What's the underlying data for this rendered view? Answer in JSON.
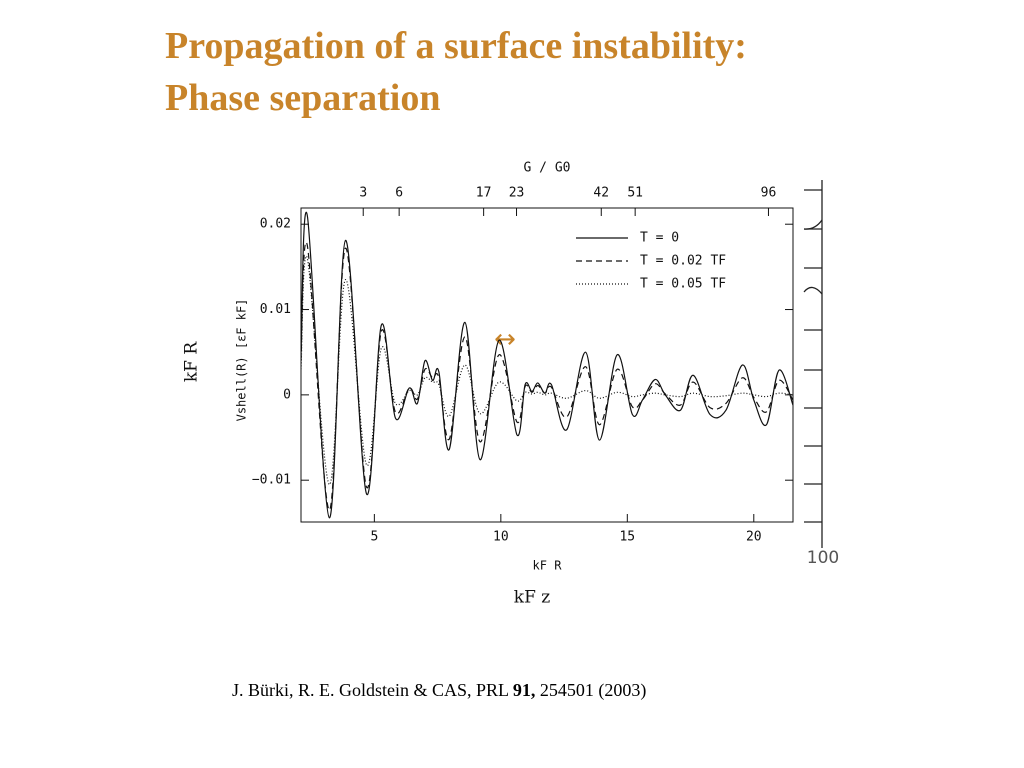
{
  "slide": {
    "title": [
      "Propagation of a surface instability:",
      "Phase separation"
    ],
    "citation": {
      "authors": "J. Bürki, R. E. Goldstein & CAS, PRL",
      "volume": "91,",
      "rest": "254501 (2003)"
    }
  },
  "background_figure": {
    "y_label": "kF R",
    "x_label": "kF z",
    "corner_tick": "100"
  },
  "chart_data": {
    "type": "line",
    "x_label": "kF R",
    "y_label": "Vshell(R) [εF kF]",
    "top_axis_label": "G / G0",
    "x": [
      2.1,
      2.35,
      3.22,
      3.86,
      4.69,
      5.28,
      5.83,
      6.38,
      6.7,
      7.0,
      7.3,
      7.55,
      7.96,
      8.58,
      9.18,
      9.93,
      10.64,
      10.96,
      11.23,
      11.46,
      11.74,
      12.0,
      12.6,
      13.35,
      13.9,
      14.6,
      15.2,
      15.6,
      16.1,
      16.5,
      17.1,
      17.6,
      18.27,
      18.9,
      19.55,
      20.0,
      20.5,
      21.0,
      21.55
    ],
    "series": [
      {
        "name": "T = 0",
        "color": "#111111",
        "dash": "none",
        "values": [
          0.0047,
          0.021,
          -0.0144,
          0.0181,
          -0.0116,
          0.0082,
          -0.0027,
          0.0008,
          -0.001,
          0.004,
          0.0017,
          0.0027,
          -0.0064,
          0.0085,
          -0.0076,
          0.0064,
          -0.0047,
          0.0012,
          0.0004,
          0.0014,
          0.0002,
          0.0012,
          -0.0041,
          0.005,
          -0.0053,
          0.0047,
          -0.0023,
          -0.0006,
          0.0018,
          0,
          -0.0018,
          0.0023,
          -0.0023,
          -0.0018,
          0.0035,
          -0.0006,
          -0.0035,
          0.0029,
          -0.0012
        ]
      },
      {
        "name": "T = 0.02 TF",
        "color": "#111111",
        "dash": "6 4",
        "values": [
          0.004,
          0.0175,
          -0.0135,
          0.0172,
          -0.0108,
          0.0075,
          -0.002,
          0.0008,
          -0.0005,
          0.003,
          0.002,
          0.002,
          -0.0052,
          0.0068,
          -0.0055,
          0.0047,
          -0.0032,
          0.001,
          0.0003,
          0.0011,
          0.0002,
          0.0009,
          -0.0026,
          0.0033,
          -0.0035,
          0.003,
          -0.0014,
          -0.0006,
          0.0013,
          0.0001,
          -0.0012,
          0.0015,
          -0.0015,
          -0.001,
          0.002,
          -0.0003,
          -0.002,
          0.0017,
          -0.0006
        ]
      },
      {
        "name": "T = 0.05 TF",
        "color": "#111111",
        "dash": "1 2",
        "values": [
          0.003,
          0.016,
          -0.0105,
          0.0135,
          -0.0082,
          0.0055,
          -0.001,
          0.0005,
          0,
          0.002,
          0.0015,
          0.0012,
          -0.0025,
          0.0035,
          -0.0022,
          0.0015,
          -0.0007,
          0.0003,
          0.0001,
          0.0003,
          0,
          0.0002,
          -0.0004,
          0.0005,
          -0.0004,
          0.0003,
          -0.0002,
          0,
          0.0002,
          0,
          -0.0002,
          0.0002,
          -0.0002,
          -0.0001,
          0.0002,
          0,
          -0.0002,
          0.0002,
          0
        ]
      }
    ],
    "xlim": [
      2.1,
      21.55
    ],
    "ylim": [
      -0.0149,
      0.0219
    ],
    "xticks": [
      5,
      10,
      15,
      20
    ],
    "yticks": [
      {
        "value": -0.01,
        "label": "−0.01"
      },
      0,
      0.01,
      0.02
    ],
    "top_ticks": [
      {
        "value": 4.56,
        "label": "3"
      },
      {
        "value": 5.98,
        "label": "6"
      },
      {
        "value": 9.32,
        "label": "17"
      },
      {
        "value": 10.62,
        "label": "23"
      },
      {
        "value": 13.97,
        "label": "42"
      },
      {
        "value": 15.31,
        "label": "51"
      },
      {
        "value": 20.58,
        "label": "96"
      }
    ],
    "legend": "upper right"
  }
}
